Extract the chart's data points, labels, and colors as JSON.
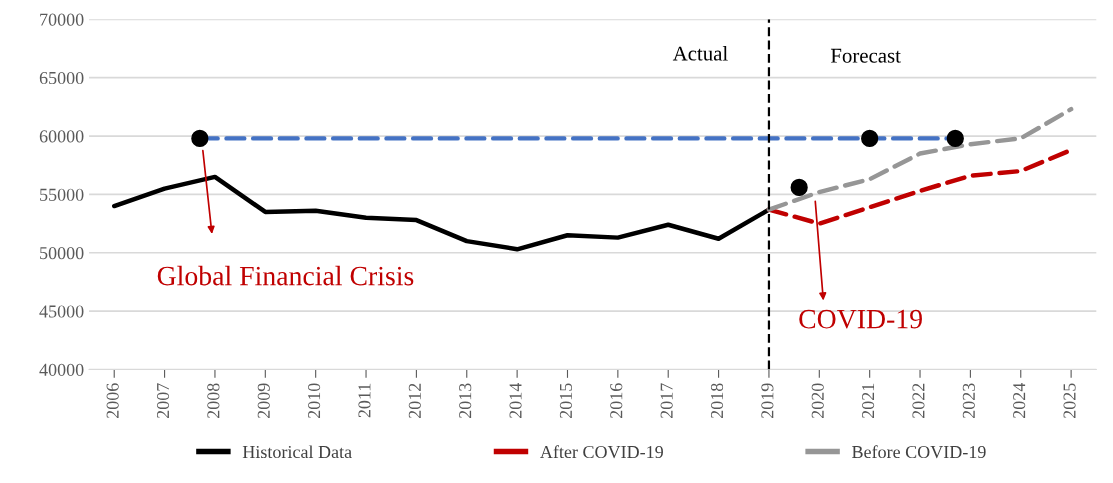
{
  "chart_data": {
    "type": "line",
    "x": [
      2006,
      2007,
      2008,
      2009,
      2010,
      2011,
      2012,
      2013,
      2014,
      2015,
      2016,
      2017,
      2018,
      2019,
      2020,
      2021,
      2022,
      2023,
      2024,
      2025
    ],
    "xlim": [
      2005.5,
      2025.5
    ],
    "xticks": [
      2006,
      2007,
      2008,
      2009,
      2010,
      2011,
      2012,
      2013,
      2014,
      2015,
      2016,
      2017,
      2018,
      2019,
      2020,
      2021,
      2022,
      2023,
      2024,
      2025
    ],
    "ylim": [
      40000,
      70000
    ],
    "yticks": [
      40000,
      45000,
      50000,
      55000,
      60000,
      65000,
      70000
    ],
    "grid": "y",
    "legend": "bottom",
    "marker": "none",
    "series": [
      {
        "name": "Historical Data",
        "color": "#000000",
        "line_style": "solid",
        "values": [
          54000,
          55500,
          56500,
          53500,
          53600,
          53000,
          52800,
          51000,
          50300,
          51500,
          51300,
          52400,
          51200,
          53700,
          null,
          null,
          null,
          null,
          null,
          null
        ]
      },
      {
        "name": "After COVID-19",
        "color": "#c00000",
        "line_style": "dashed",
        "values": [
          null,
          null,
          null,
          null,
          null,
          null,
          null,
          null,
          null,
          null,
          null,
          null,
          null,
          53700,
          52500,
          53900,
          55300,
          56600,
          57000,
          58800
        ]
      },
      {
        "name": "Before COVID-19",
        "color": "#969696",
        "line_style": "dashed",
        "values": [
          null,
          null,
          null,
          null,
          null,
          null,
          null,
          null,
          null,
          null,
          null,
          null,
          null,
          53700,
          55200,
          56300,
          58500,
          59300,
          59800,
          62300
        ]
      },
      {
        "type": "line",
        "color": "#4472c4",
        "line_style": "dashed",
        "x": [
          2007.7,
          2022.7
        ],
        "values": [
          59800,
          59800
        ]
      },
      {
        "type": "scatter",
        "color": "#000000",
        "marker": "circle",
        "x": [
          2007.7,
          2019.6,
          2021,
          2022.7
        ],
        "values": [
          59800,
          55600,
          59800,
          59800
        ]
      }
    ],
    "ref_lines": [
      {
        "axis": "x",
        "value": 2019,
        "color": "#000000",
        "line_style": "dashed"
      }
    ],
    "annotations": [
      "Global Financial Crisis",
      "COVID-19",
      "Actual",
      "Forecast"
    ]
  }
}
